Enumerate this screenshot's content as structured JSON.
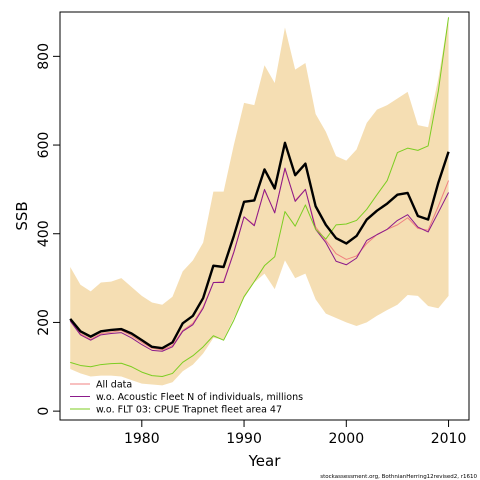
{
  "chart_data": {
    "type": "line",
    "xlabel": "Year",
    "ylabel": "SSB",
    "xlim": [
      1972,
      2012
    ],
    "ylim": [
      -20,
      900
    ],
    "xticks": [
      1980,
      1990,
      2000,
      2010
    ],
    "yticks": [
      0,
      200,
      400,
      600,
      800
    ],
    "years": [
      1973,
      1974,
      1975,
      1976,
      1977,
      1978,
      1979,
      1980,
      1981,
      1982,
      1983,
      1984,
      1985,
      1986,
      1987,
      1988,
      1989,
      1990,
      1991,
      1992,
      1993,
      1994,
      1995,
      1996,
      1997,
      1998,
      1999,
      2000,
      2001,
      2002,
      2003,
      2004,
      2005,
      2006,
      2007,
      2008,
      2009,
      2010
    ],
    "band": {
      "upper": [
        325,
        285,
        270,
        290,
        292,
        300,
        280,
        260,
        245,
        240,
        258,
        315,
        340,
        380,
        495,
        495,
        600,
        695,
        690,
        780,
        740,
        865,
        770,
        785,
        670,
        630,
        575,
        565,
        590,
        650,
        680,
        690,
        705,
        720,
        645,
        640,
        750,
        890
      ],
      "lower": [
        95,
        85,
        78,
        80,
        80,
        78,
        70,
        62,
        60,
        58,
        65,
        90,
        105,
        130,
        165,
        162,
        210,
        255,
        290,
        310,
        275,
        340,
        300,
        310,
        252,
        220,
        210,
        200,
        192,
        200,
        215,
        228,
        240,
        262,
        260,
        237,
        232,
        260
      ],
      "color": "#f5deb3"
    },
    "series": [
      {
        "name": "All data",
        "color": "#f08080",
        "width": 1,
        "values": [
          205,
          175,
          162,
          175,
          178,
          182,
          170,
          155,
          142,
          138,
          148,
          182,
          198,
          235,
          290,
          292,
          360,
          438,
          420,
          498,
          448,
          545,
          475,
          500,
          415,
          385,
          355,
          342,
          350,
          378,
          398,
          410,
          420,
          436,
          412,
          408,
          462,
          520
        ]
      },
      {
        "name": "w.o. Acoustic Fleet  N of individuals, millions",
        "color": "#8b1a8b",
        "width": 1,
        "values": [
          203,
          172,
          160,
          172,
          175,
          177,
          165,
          150,
          137,
          135,
          145,
          180,
          195,
          232,
          290,
          290,
          358,
          438,
          418,
          500,
          447,
          548,
          473,
          500,
          410,
          380,
          338,
          330,
          345,
          385,
          398,
          410,
          430,
          443,
          415,
          404,
          448,
          493
        ]
      },
      {
        "name": "w.o. FLT 03: CPUE Trapnet fleet area 47",
        "color": "#7ccd22",
        "width": 1,
        "values": [
          110,
          103,
          100,
          105,
          107,
          108,
          100,
          88,
          80,
          78,
          85,
          110,
          125,
          145,
          170,
          160,
          205,
          258,
          292,
          328,
          348,
          450,
          417,
          465,
          410,
          388,
          420,
          422,
          430,
          455,
          488,
          520,
          583,
          593,
          588,
          598,
          722,
          888
        ]
      },
      {
        "name": "",
        "color": "#000000",
        "width": 2.4,
        "values": [
          208,
          180,
          168,
          180,
          183,
          185,
          175,
          160,
          145,
          142,
          155,
          198,
          215,
          255,
          328,
          325,
          395,
          472,
          475,
          545,
          502,
          605,
          532,
          558,
          462,
          420,
          390,
          378,
          395,
          432,
          452,
          468,
          488,
          492,
          440,
          432,
          515,
          585
        ]
      }
    ],
    "legend": {
      "position": "bottom-left",
      "entries": [
        {
          "label": "All data",
          "color": "#f08080"
        },
        {
          "label": "w.o. Acoustic Fleet  N of individuals, millions",
          "color": "#8b1a8b"
        },
        {
          "label": "w.o. FLT 03: CPUE Trapnet fleet area 47",
          "color": "#7ccd22"
        }
      ]
    },
    "footnote": "stockassessment.org, BothnianHerring12revised2, r1610"
  }
}
